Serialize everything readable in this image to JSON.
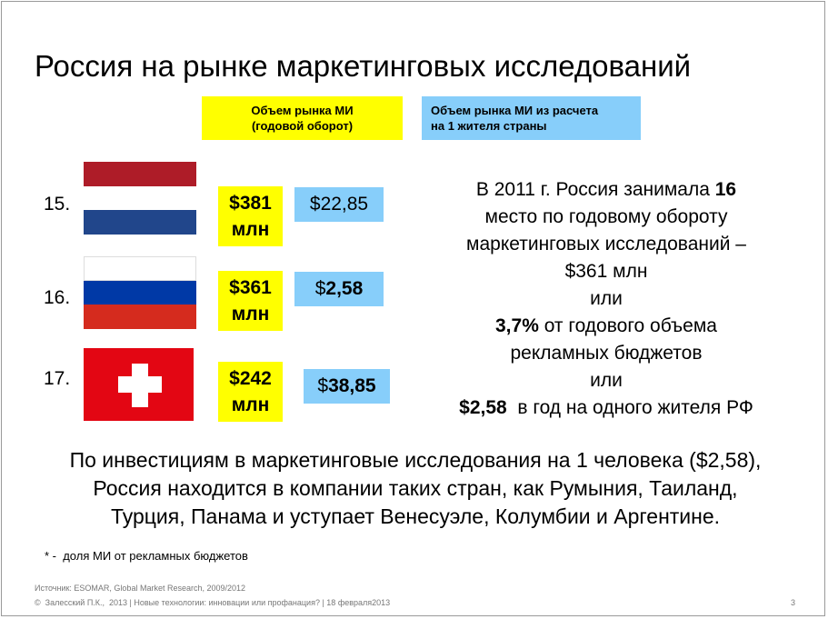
{
  "title": "Россия на рынке маркетинговых исследований",
  "headers": {
    "market_volume": "Объем рынка МИ\n(годовой оборот)",
    "per_capita": "Объем рынка МИ из расчета\nна 1 жителя страны"
  },
  "rows": [
    {
      "rank": "15.",
      "flag": "netherlands-flag",
      "flag_colors": [
        "#ae1c28",
        "#ffffff",
        "#21468b"
      ],
      "volume_line1": "$381",
      "volume_line2": "млн",
      "per_capita_prefix": "$",
      "per_capita_value": "22,85"
    },
    {
      "rank": "16.",
      "flag": "russia-flag",
      "flag_colors": [
        "#ffffff",
        "#0039a6",
        "#d52b1e"
      ],
      "volume_line1": "$361",
      "volume_line2": "млн",
      "per_capita_prefix": "$",
      "per_capita_value": "2,58"
    },
    {
      "rank": "17.",
      "flag": "switzerland-flag",
      "flag_colors": [
        "#e30613",
        "#ffffff"
      ],
      "volume_line1": "$242",
      "volume_line2": "млн",
      "per_capita_prefix": "$",
      "per_capita_value": "38,85"
    }
  ],
  "side_text": {
    "l1_a": "В 2011 г. Россия занимала ",
    "l1_b": "16",
    "l2": "место по годовому обороту",
    "l3": "маркетинговых исследований –",
    "l4": "$361 млн",
    "l5": "или",
    "l6_a": "3,7%",
    "l6_b": " от годового объема",
    "l7": "рекламных бюджетов",
    "l8": "или",
    "l9_a": "$2,58",
    "l9_b": "  в год на одного жителя РФ"
  },
  "bottom_text": [
    "По инвестициям в маркетинговые исследования на 1 человека ($2,58),",
    "Россия находится в компании таких стран, как Румыния, Таиланд,",
    "Турция, Панама и уступает Венесуэле, Колумбии и Аргентине."
  ],
  "footnote": "* -  доля МИ от рекламных бюджетов",
  "source": "Источник: ESOMAR, Global Market Research, 2009/2012",
  "footer": "©  Залесский П.К.,  2013 | Новые технологии: инновации или профанация? | 18 февраля2013",
  "page_number": "3",
  "colors": {
    "yellow": "#ffff00",
    "light_blue": "#87cefa"
  }
}
